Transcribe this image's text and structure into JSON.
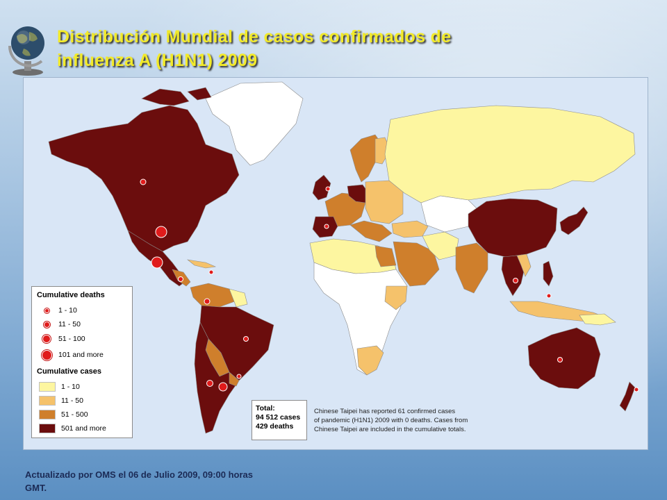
{
  "title": {
    "line1": "Distribución Mundial de casos confirmados de",
    "line2": "influenza A (H1N1) 2009"
  },
  "legend": {
    "deaths_title": "Cumulative deaths",
    "deaths": [
      {
        "label": "1 - 10"
      },
      {
        "label": "11 - 50"
      },
      {
        "label": "51 - 100"
      },
      {
        "label": "101 and more"
      }
    ],
    "cases_title": "Cumulative cases",
    "cases": [
      {
        "label": "1 - 10",
        "color": "#fdf6a0"
      },
      {
        "label": "11 - 50",
        "color": "#f5c26b"
      },
      {
        "label": "51 - 500",
        "color": "#cf7f2c"
      },
      {
        "label": "501 and more",
        "color": "#6b0d0d"
      }
    ]
  },
  "total": {
    "title": "Total:",
    "cases": "94 512 cases",
    "deaths": "429 deaths"
  },
  "note": {
    "line1": "Chinese Taipei has reported 61 confirmed cases",
    "line2": "of pandemic (H1N1) 2009 with 0 deaths. Cases from",
    "line3": "Chinese Taipei are included in the cumulative totals."
  },
  "footer": {
    "line1": "Actualizado por OMS el 06 de Julio 2009, 09:00 horas",
    "line2": "GMT."
  },
  "colors": {
    "ocean": "#d9e6f6",
    "no_cases": "#ffffff",
    "death_marker": "#e01b1b",
    "title": "#f2ea2a"
  },
  "icons": {
    "globe": "globe-icon"
  }
}
